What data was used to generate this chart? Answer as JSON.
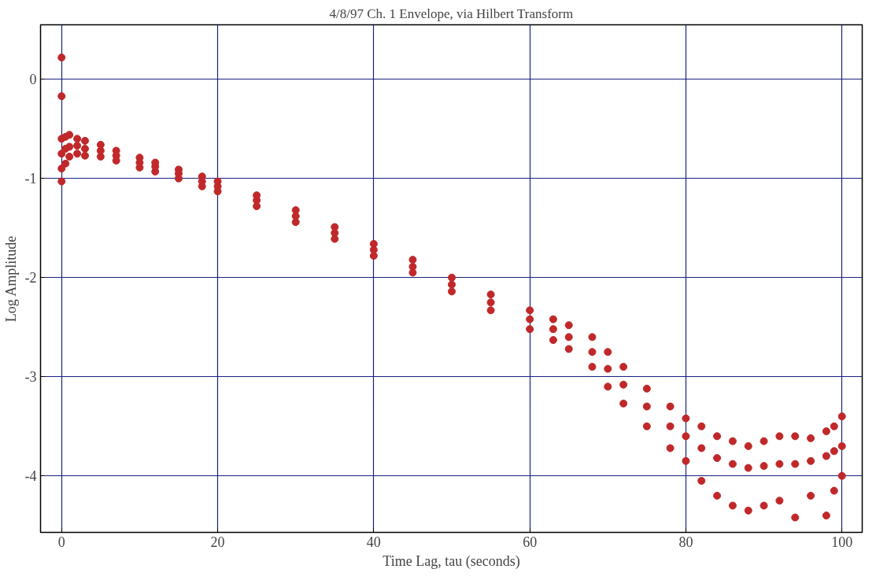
{
  "chart_data": {
    "type": "scatter",
    "title": "4/8/97 Ch. 1 Envelope, via Hilbert Transform",
    "xlabel": "Time Lag, tau (seconds)",
    "ylabel": "Log Amplitude",
    "xlim": [
      -2.7,
      102.6
    ],
    "ylim": [
      -4.57,
      0.55
    ],
    "xticks": [
      0,
      20,
      40,
      60,
      80,
      100
    ],
    "yticks": [
      0,
      -1,
      -2,
      -3,
      -4
    ],
    "grid": true,
    "marker": "circle",
    "series": [
      {
        "color": "#c0282a",
        "x": [
          0,
          0,
          0,
          0,
          0,
          0,
          0.5,
          0.5,
          0.5,
          1,
          1,
          1,
          2,
          2,
          2,
          3,
          3,
          3,
          5,
          5,
          5,
          7,
          7,
          7,
          10,
          10,
          10,
          12,
          12,
          12,
          15,
          15,
          15,
          18,
          18,
          18,
          20,
          20,
          20,
          25,
          25,
          25,
          30,
          30,
          30,
          35,
          35,
          35,
          40,
          40,
          40,
          45,
          45,
          45,
          50,
          50,
          50,
          55,
          55,
          55,
          60,
          60,
          60,
          63,
          63,
          63,
          65,
          65,
          65,
          68,
          68,
          68,
          70,
          70,
          70,
          72,
          72,
          72,
          75,
          75,
          75,
          78,
          78,
          78,
          80,
          80,
          80,
          82,
          82,
          82,
          84,
          84,
          84,
          86,
          86,
          86,
          88,
          88,
          88,
          90,
          90,
          90,
          92,
          92,
          92,
          94,
          94,
          94,
          96,
          96,
          96,
          98,
          98,
          98,
          99,
          99,
          99,
          100,
          100,
          100
        ],
        "values": [
          0.22,
          -0.17,
          -0.6,
          -0.75,
          -0.9,
          -1.03,
          -0.58,
          -0.7,
          -0.85,
          -0.56,
          -0.68,
          -0.78,
          -0.6,
          -0.67,
          -0.75,
          -0.62,
          -0.7,
          -0.77,
          -0.66,
          -0.72,
          -0.78,
          -0.72,
          -0.77,
          -0.82,
          -0.79,
          -0.84,
          -0.89,
          -0.84,
          -0.88,
          -0.93,
          -0.91,
          -0.95,
          -1.0,
          -0.98,
          -1.03,
          -1.08,
          -1.03,
          -1.08,
          -1.13,
          -1.17,
          -1.22,
          -1.28,
          -1.32,
          -1.38,
          -1.44,
          -1.49,
          -1.55,
          -1.61,
          -1.66,
          -1.72,
          -1.78,
          -1.82,
          -1.89,
          -1.95,
          -2.0,
          -2.07,
          -2.14,
          -2.17,
          -2.25,
          -2.33,
          -2.33,
          -2.42,
          -2.52,
          -2.42,
          -2.52,
          -2.63,
          -2.48,
          -2.6,
          -2.72,
          -2.6,
          -2.75,
          -2.9,
          -2.75,
          -2.92,
          -3.1,
          -2.9,
          -3.08,
          -3.27,
          -3.12,
          -3.3,
          -3.5,
          -3.3,
          -3.5,
          -3.72,
          -3.42,
          -3.6,
          -3.85,
          -3.5,
          -3.72,
          -4.05,
          -3.6,
          -3.82,
          -4.2,
          -3.65,
          -3.88,
          -4.3,
          -3.7,
          -3.92,
          -4.35,
          -3.65,
          -3.9,
          -4.3,
          -3.6,
          -3.88,
          -4.25,
          -3.6,
          -3.88,
          -4.42,
          -3.62,
          -3.85,
          -4.2,
          -3.55,
          -3.8,
          -4.4,
          -3.5,
          -3.75,
          -4.15,
          -3.4,
          -3.7,
          -4.0
        ]
      }
    ]
  }
}
